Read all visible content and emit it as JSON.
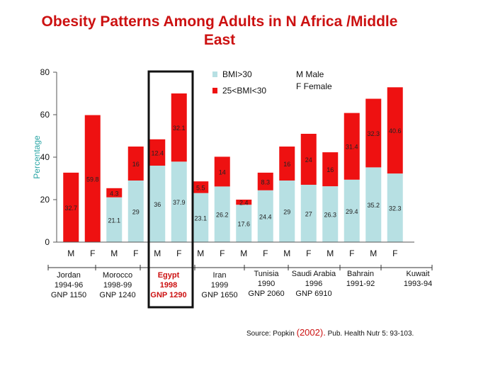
{
  "title_line1": "Obesity Patterns Among Adults in N Africa /Middle",
  "title_line2": "East",
  "source": {
    "prefix": "Source: Popkin ",
    "year": "(2002).",
    "suffix": "  Pub. Health Nutr 5: 93-103."
  },
  "colors": {
    "obese": "#b7e0e3",
    "overweight": "#ee1111",
    "highlight_text": "#cc1111"
  },
  "chart_data": {
    "type": "bar",
    "stacked": true,
    "ylabel": "Percentage",
    "ylim": [
      0,
      80
    ],
    "yticks": [
      "0",
      "20",
      "40",
      "60",
      "80"
    ],
    "legend": {
      "position": "top",
      "entries": [
        "BMI>30",
        "25<BMI<30"
      ],
      "notes": [
        "M Male",
        "F Female"
      ]
    },
    "categories": [
      "M",
      "F",
      "M",
      "F",
      "M",
      "F",
      "M",
      "F",
      "M",
      "F",
      "M",
      "F",
      "M",
      "F",
      "M",
      "F"
    ],
    "series": [
      {
        "name": "BMI>30",
        "values": [
          0,
          0,
          21.1,
          29,
          36,
          37.9,
          23.1,
          26.2,
          17.6,
          24.4,
          29,
          27,
          26.3,
          29.4,
          35.2,
          32.3
        ],
        "labels": [
          "",
          "",
          "21.1",
          "29",
          "36",
          "37.9",
          "23.1",
          "26.2",
          "17.6",
          "24.4",
          "29",
          "27",
          "26.3",
          "29.4",
          "35.2",
          "32.3"
        ]
      },
      {
        "name": "25<BMI<30",
        "values": [
          32.7,
          59.8,
          4.3,
          16,
          12.4,
          32.1,
          5.5,
          14,
          2.4,
          8.3,
          16,
          24,
          16,
          31.4,
          32.3,
          40.6
        ],
        "labels": [
          "32.7",
          "59.8",
          "4.3",
          "16",
          "12.4",
          "32.1",
          "5.5",
          "14",
          "2.4",
          "8.3",
          "16",
          "24",
          "16",
          "31.4",
          "32.3",
          "40.6"
        ]
      }
    ],
    "groups": [
      {
        "name": "Jordan",
        "year": "1994-96",
        "gnp": "GNP  1150"
      },
      {
        "name": "Morocco",
        "year": "1998-99",
        "gnp": "GNP  1240"
      },
      {
        "name": "Egypt",
        "year": "1998",
        "gnp": "GNP  1290",
        "highlight": true
      },
      {
        "name": "Iran",
        "year": "1999",
        "gnp": "GNP  1650"
      },
      {
        "name": "Tunisia",
        "year": "1990",
        "gnp": "GNP  2060"
      },
      {
        "name": "Saudi Arabia",
        "year": "1996",
        "gnp": "GNP  6910"
      },
      {
        "name": "Bahrain",
        "year": "1991-92",
        "gnp": ""
      },
      {
        "name": "Kuwait",
        "year": "1993-94",
        "gnp": ""
      }
    ]
  }
}
